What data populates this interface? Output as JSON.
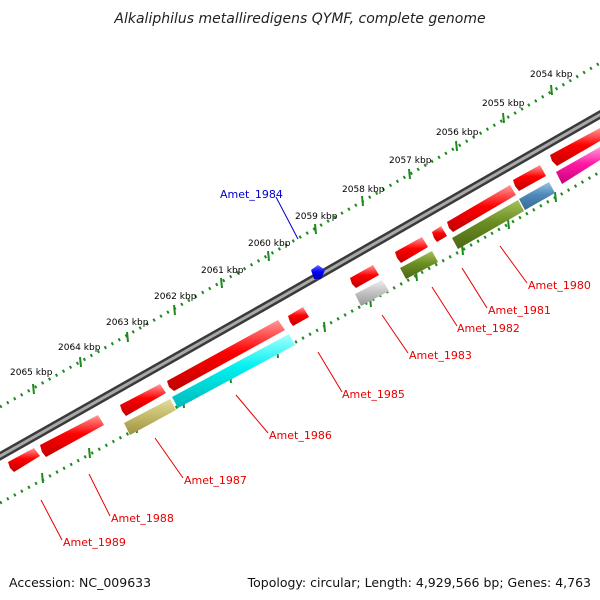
{
  "header": {
    "title": "Alkaliphilus metalliredigens QYMF, complete genome"
  },
  "scale": {
    "labels": [
      "2054 kbp",
      "2055 kbp",
      "2056 kbp",
      "2057 kbp",
      "2058 kbp",
      "2059 kbp",
      "2060 kbp",
      "2061 kbp",
      "2062 kbp",
      "2063 kbp",
      "2064 kbp",
      "2065 kbp"
    ]
  },
  "genes": [
    {
      "label": "Amet_1980",
      "color": "#e80000"
    },
    {
      "label": "Amet_1981",
      "color": "#e80000"
    },
    {
      "label": "Amet_1982",
      "color": "#e80000"
    },
    {
      "label": "Amet_1983",
      "color": "#e80000"
    },
    {
      "label": "Amet_1984",
      "color": "#0000cc"
    },
    {
      "label": "Amet_1985",
      "color": "#e80000"
    },
    {
      "label": "Amet_1986",
      "color": "#e80000"
    },
    {
      "label": "Amet_1987",
      "color": "#e80000"
    },
    {
      "label": "Amet_1988",
      "color": "#e80000"
    },
    {
      "label": "Amet_1989",
      "color": "#e80000"
    }
  ],
  "footer": {
    "accession": "Accession: NC_009633",
    "summary": "Topology: circular; Length: 4,929,566 bp; Genes: 4,763"
  }
}
